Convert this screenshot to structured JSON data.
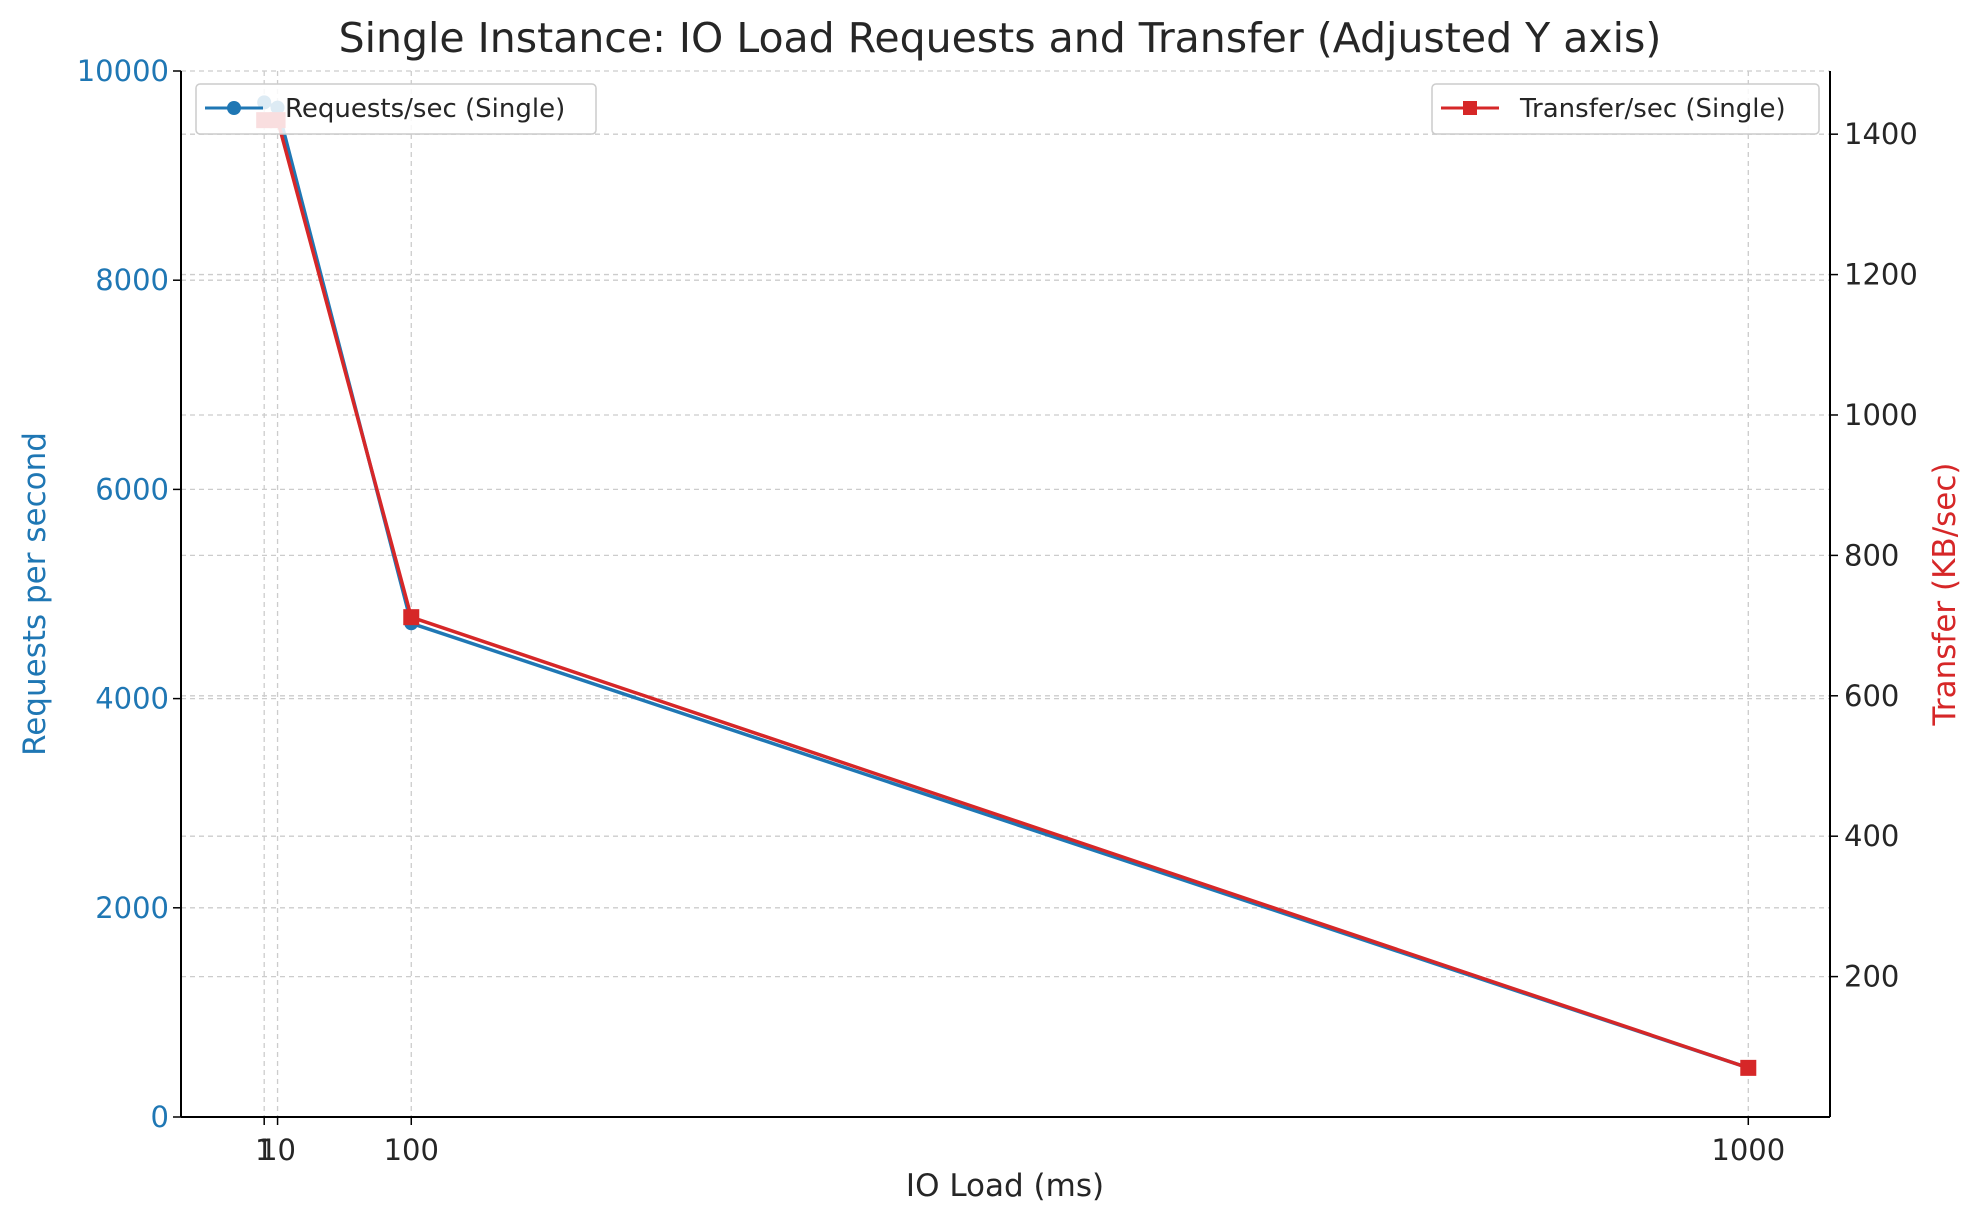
{
  "chart_data": {
    "type": "line",
    "title": "Single Instance: IO Load Requests and Transfer (Adjusted Y axis)",
    "xlabel": "IO Load (ms)",
    "ylabel_left": "Requests per second",
    "ylabel_right": "Transfer (KB/sec)",
    "x_ticks": [
      1,
      10,
      100,
      1000
    ],
    "x_tick_labels": [
      "1",
      "10",
      "100",
      "1000"
    ],
    "xlim": [
      -55,
      1055
    ],
    "ylim_left": [
      0,
      10000
    ],
    "ylim_right": [
      0,
      1490
    ],
    "y_left_ticks": [
      0,
      2000,
      4000,
      6000,
      8000,
      10000
    ],
    "y_right_ticks": [
      200,
      400,
      600,
      800,
      1000,
      1200,
      1400
    ],
    "grid": true,
    "series": [
      {
        "name": "Requests/sec (Single)",
        "axis": "left",
        "marker": "circle",
        "color": "#1f77b4",
        "x": [
          1,
          10,
          100,
          1000
        ],
        "values": [
          9700,
          9650,
          4720,
          470
        ]
      },
      {
        "name": "Transfer/sec (Single)",
        "axis": "right",
        "marker": "square",
        "color": "#d62728",
        "x": [
          1,
          10,
          100,
          1000
        ],
        "values": [
          1420,
          1420,
          712,
          70
        ]
      }
    ],
    "legends": [
      {
        "series": "Requests/sec (Single)",
        "placement": "top-left"
      },
      {
        "series": "Transfer/sec (Single)",
        "placement": "top-right"
      }
    ]
  },
  "colors": {
    "left_axis": "#1f77b4",
    "right_axis": "#d62728",
    "grid": "#cccccc",
    "text": "#262626"
  }
}
